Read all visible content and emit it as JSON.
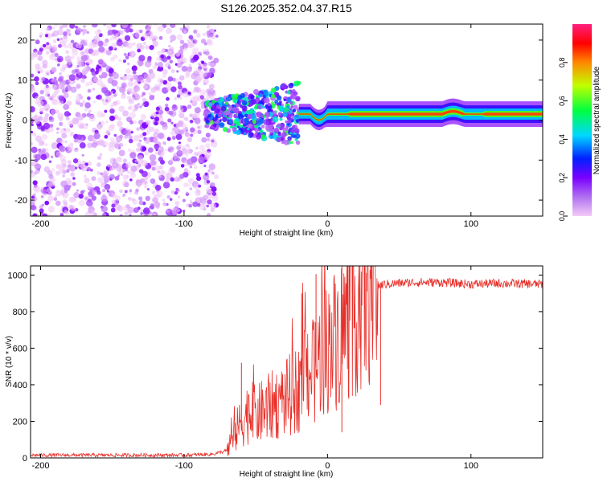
{
  "title": "S126.2025.352.04.37.R15",
  "chart_data": [
    {
      "type": "heatmap",
      "name": "spectrogram",
      "xlabel": "Height of straight line (km)",
      "ylabel": "Frequency (Hz)",
      "xlim": [
        -207,
        150
      ],
      "ylim": [
        -24,
        24
      ],
      "xticks": [
        -200,
        -100,
        0,
        100
      ],
      "yticks": [
        -20,
        -10,
        0,
        10,
        20
      ],
      "colorbar": {
        "label": "Normalized spectral amplitude",
        "range": [
          0.0,
          1.0
        ],
        "ticks": [
          0.0,
          0.2,
          0.4,
          0.6,
          0.8
        ],
        "colors": [
          "#f3ccf8",
          "#7a00ff",
          "#0020ff",
          "#00d8ff",
          "#00ff40",
          "#c0ff00",
          "#ff8800",
          "#ff0000",
          "#ff2080"
        ]
      },
      "regions": [
        {
          "x": [
            -207,
            -85
          ],
          "description_level": "noise",
          "amplitude_max": 0.2
        },
        {
          "x": [
            -85,
            -20
          ],
          "description_level": "scattered",
          "amplitude_max": 0.5
        },
        {
          "x": [
            -20,
            150
          ],
          "description_level": "carrier",
          "center_frequency_hz": 1.5,
          "amplitude_max": 1.0
        }
      ]
    },
    {
      "type": "line",
      "name": "snr",
      "xlabel": "Height of straight line (km)",
      "ylabel": "SNR (10 * v/v)",
      "xlim": [
        -207,
        150
      ],
      "ylim": [
        0,
        1050
      ],
      "xticks": [
        -200,
        -100,
        0,
        100
      ],
      "yticks": [
        0,
        200,
        400,
        600,
        800,
        1000
      ],
      "color": "#e8302a",
      "series": [
        {
          "name": "SNR",
          "x": [
            -207,
            -150,
            -100,
            -80,
            -70,
            -65,
            -60,
            -55,
            -50,
            -40,
            -30,
            -20,
            -15,
            -10,
            -5,
            0,
            5,
            10,
            15,
            20,
            25,
            30,
            35,
            40,
            50,
            60,
            80,
            100,
            120,
            150
          ],
          "y": [
            15,
            15,
            15,
            20,
            40,
            120,
            200,
            250,
            230,
            280,
            320,
            380,
            520,
            450,
            560,
            600,
            650,
            700,
            760,
            820,
            880,
            920,
            940,
            950,
            955,
            960,
            960,
            950,
            955,
            950
          ]
        }
      ],
      "spikes": [
        {
          "x": -60,
          "y": 520
        },
        {
          "x": -18,
          "y": 900
        },
        {
          "x": -8,
          "y": 1005
        },
        {
          "x": 10,
          "y": 1050
        },
        {
          "x": 10,
          "y": 140
        },
        {
          "x": 37,
          "y": 290
        }
      ]
    }
  ]
}
